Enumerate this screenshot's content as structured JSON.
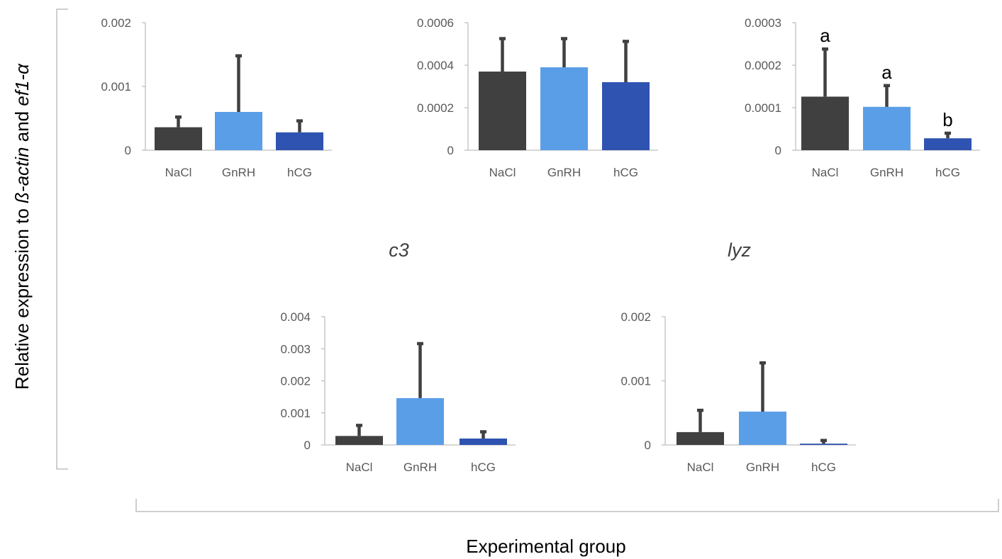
{
  "figure": {
    "y_axis_title": {
      "prefix": "Relative expression to ",
      "gene1": "ß-actin",
      "joiner": " and ",
      "gene2": "ef1-α"
    },
    "x_axis_title": "Experimental group"
  },
  "colors": {
    "NaCl": "#404040",
    "GnRH": "#5b9ee8",
    "hCG": "#2f53b0",
    "error_bar": "#404040",
    "axis": "#bfbfbf",
    "text": "#595959"
  },
  "chart_data": [
    {
      "type": "bar",
      "title": "",
      "categories": [
        "NaCl",
        "GnRH",
        "hCG"
      ],
      "values": [
        0.00036,
        0.0006,
        0.00028
      ],
      "errors": [
        0.00016,
        0.00088,
        0.00018
      ],
      "letters": [
        "",
        "",
        ""
      ],
      "ylim": [
        0,
        0.002
      ],
      "yticks": [
        0,
        0.001,
        0.002
      ],
      "ytick_labels": [
        "0",
        "0.001",
        "0.002"
      ]
    },
    {
      "type": "bar",
      "title": "",
      "categories": [
        "NaCl",
        "GnRH",
        "hCG"
      ],
      "values": [
        0.00037,
        0.00039,
        0.00032
      ],
      "errors": [
        0.000155,
        0.000135,
        0.000192
      ],
      "letters": [
        "",
        "",
        ""
      ],
      "ylim": [
        0,
        0.0006
      ],
      "yticks": [
        0,
        0.0002,
        0.0004,
        0.0006
      ],
      "ytick_labels": [
        "0",
        "0.0002",
        "0.0004",
        "0.0006"
      ]
    },
    {
      "type": "bar",
      "title": "",
      "categories": [
        "NaCl",
        "GnRH",
        "hCG"
      ],
      "values": [
        0.000126,
        0.000102,
        2.8e-05
      ],
      "errors": [
        0.000112,
        5e-05,
        1.2e-05
      ],
      "letters": [
        "a",
        "a",
        "b"
      ],
      "ylim": [
        0,
        0.0003
      ],
      "yticks": [
        0,
        0.0001,
        0.0002,
        0.0003
      ],
      "ytick_labels": [
        "0",
        "0.0001",
        "0.0002",
        "0.0003"
      ]
    },
    {
      "type": "bar",
      "title": "c3",
      "categories": [
        "NaCl",
        "GnRH",
        "hCG"
      ],
      "values": [
        0.00028,
        0.00146,
        0.0002
      ],
      "errors": [
        0.00033,
        0.0017,
        0.00021
      ],
      "letters": [
        "",
        "",
        ""
      ],
      "ylim": [
        0,
        0.004
      ],
      "yticks": [
        0,
        0.001,
        0.002,
        0.003,
        0.004
      ],
      "ytick_labels": [
        "0",
        "0.001",
        "0.002",
        "0.003",
        "0.004"
      ]
    },
    {
      "type": "bar",
      "title": "lyz",
      "categories": [
        "NaCl",
        "GnRH",
        "hCG"
      ],
      "values": [
        0.0002,
        0.00052,
        2e-05
      ],
      "errors": [
        0.00034,
        0.00076,
        5e-05
      ],
      "letters": [
        "",
        "",
        ""
      ],
      "ylim": [
        0,
        0.002
      ],
      "yticks": [
        0,
        0.001,
        0.002
      ],
      "ytick_labels": [
        "0",
        "0.001",
        "0.002"
      ]
    }
  ]
}
